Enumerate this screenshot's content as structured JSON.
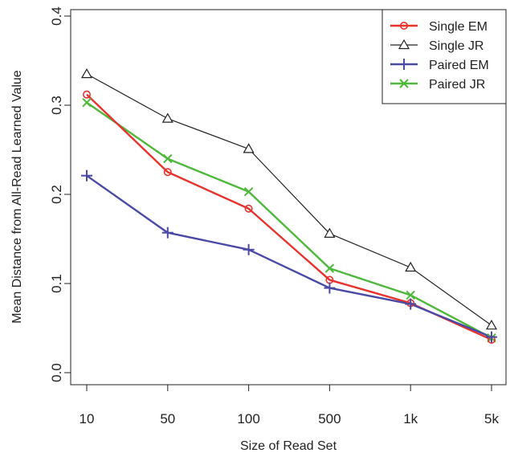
{
  "chart_data": {
    "type": "line",
    "categories": [
      "10",
      "50",
      "100",
      "500",
      "1k",
      "5k"
    ],
    "xlabel": "Size of Read Set",
    "ylabel": "Mean Distance from All-Read Learned Value",
    "ylim": [
      0.0,
      0.4
    ],
    "yticks": [
      "0.0",
      "0.1",
      "0.2",
      "0.3",
      "0.4"
    ],
    "grid": false,
    "legend_position": "top-right",
    "series": [
      {
        "name": "Single EM",
        "color": "#e8322c",
        "marker": "circle",
        "values": [
          0.312,
          0.225,
          0.184,
          0.104,
          0.078,
          0.037
        ]
      },
      {
        "name": "Single JR",
        "color": "#222222",
        "marker": "triangle",
        "values": [
          0.335,
          0.285,
          0.251,
          0.156,
          0.118,
          0.053
        ]
      },
      {
        "name": "Paired EM",
        "color": "#4a4aa6",
        "marker": "plus",
        "values": [
          0.221,
          0.157,
          0.138,
          0.095,
          0.077,
          0.04
        ]
      },
      {
        "name": "Paired JR",
        "color": "#4db83a",
        "marker": "cross",
        "values": [
          0.303,
          0.24,
          0.203,
          0.117,
          0.087,
          0.039
        ]
      }
    ]
  }
}
